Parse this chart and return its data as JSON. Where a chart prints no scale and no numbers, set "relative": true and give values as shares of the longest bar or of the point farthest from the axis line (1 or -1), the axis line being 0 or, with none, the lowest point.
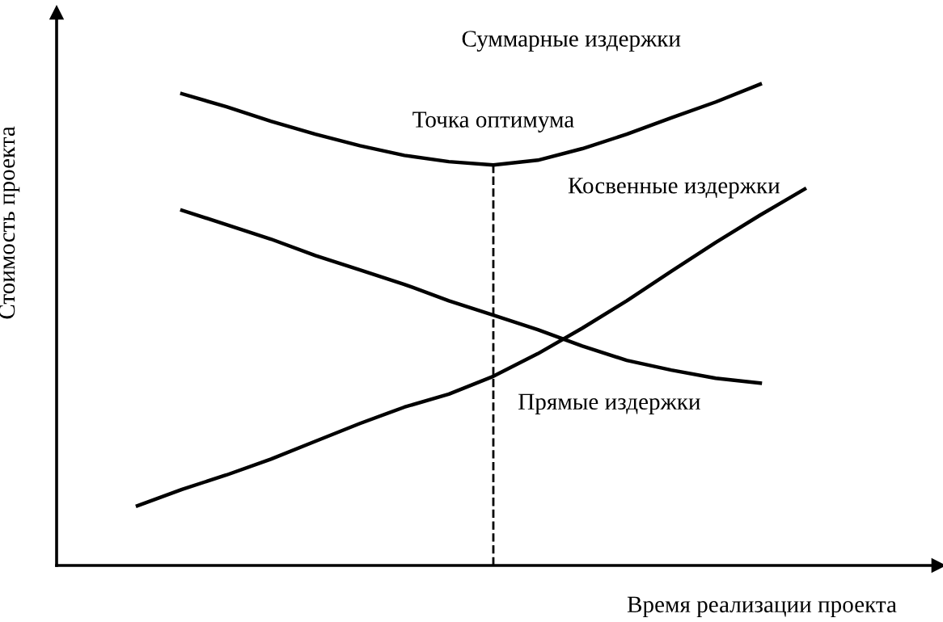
{
  "chart_data": {
    "type": "line",
    "relative": true,
    "xlabel": "Время реализации проекта",
    "ylabel": "Стоимость проекта",
    "marker": "none",
    "line_style": "solid",
    "categories": [
      null,
      null,
      null,
      null,
      null,
      null,
      null,
      null,
      null,
      null,
      null,
      null,
      null,
      null,
      null,
      null
    ],
    "series": [
      {
        "name": "Суммарные издержки",
        "color": "#000000",
        "values": [
          null,
          0.98,
          0.953,
          0.923,
          0.896,
          0.872,
          0.852,
          0.839,
          0.832,
          0.842,
          0.866,
          0.896,
          0.93,
          0.963,
          1.0,
          null
        ]
      },
      {
        "name": "Косвенные издержки",
        "color": "#000000",
        "values": [
          0.124,
          0.158,
          0.188,
          0.221,
          0.258,
          0.295,
          0.329,
          0.356,
          0.393,
          0.44,
          0.493,
          0.55,
          0.611,
          0.671,
          0.728,
          0.782
        ]
      },
      {
        "name": "Прямые издержки",
        "color": "#000000",
        "values": [
          null,
          0.738,
          0.708,
          0.678,
          0.644,
          0.614,
          0.584,
          0.55,
          0.52,
          0.49,
          0.456,
          0.426,
          0.406,
          0.389,
          0.379,
          null
        ]
      }
    ],
    "ref_lines": [
      {
        "axis": "x",
        "color": "#000000",
        "line_style": "dashed"
      }
    ],
    "annotations": [
      "Точка оптимума"
    ]
  }
}
